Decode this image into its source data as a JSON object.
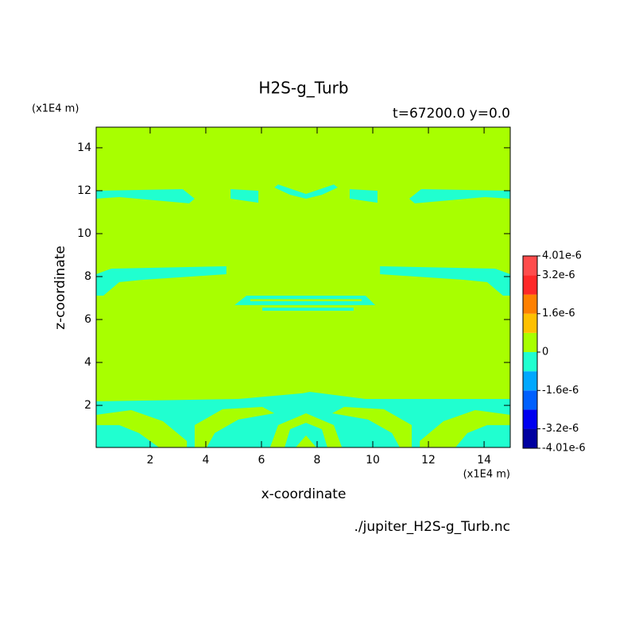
{
  "chart_data": {
    "type": "contour",
    "title": "H2S-g_Turb",
    "subtitle": "t=67200.0 y=0.0",
    "x_label": "x-coordinate",
    "y_label": "z-coordinate",
    "x_unit": "(x1E4 m)",
    "y_unit": "(x1E4 m)",
    "source": "./jupiter_H2S-g_Turb.nc",
    "xlim": [
      0.06,
      14.94
    ],
    "ylim": [
      0.04,
      14.96
    ],
    "xticks": [
      2,
      4,
      6,
      8,
      10,
      12,
      14
    ],
    "yticks": [
      2,
      4,
      6,
      8,
      10,
      12,
      14
    ],
    "background": 4e-07,
    "regions": [
      {
        "value": -4e-07,
        "x": [
          0.06,
          3.17,
          3.6,
          3.4,
          0.89,
          0.06
        ],
        "z": [
          12.0,
          12.07,
          11.63,
          11.41,
          11.7,
          11.63
        ]
      },
      {
        "value": -4e-07,
        "x": [
          14.94,
          11.74,
          11.31,
          11.51,
          14.03,
          14.94
        ],
        "z": [
          12.0,
          12.07,
          11.63,
          11.41,
          11.7,
          11.63
        ]
      },
      {
        "value": -4e-07,
        "x": [
          6.46,
          7.03,
          7.6,
          8.17,
          8.74,
          8.6,
          7.6,
          6.6
        ],
        "z": [
          12.15,
          11.81,
          11.63,
          11.81,
          12.15,
          12.29,
          11.85,
          12.29
        ]
      },
      {
        "value": -4e-07,
        "x": [
          4.89,
          5.89,
          5.89,
          4.89
        ],
        "z": [
          12.07,
          12.0,
          11.44,
          11.63
        ]
      },
      {
        "value": -4e-07,
        "x": [
          9.17,
          10.17,
          10.17,
          9.17
        ],
        "z": [
          12.07,
          12.0,
          11.44,
          11.63
        ]
      },
      {
        "value": -4e-07,
        "x": [
          0.06,
          0.6,
          4.74,
          4.74,
          1.75,
          0.89,
          0.32,
          0.06
        ],
        "z": [
          8.11,
          8.37,
          8.48,
          8.11,
          7.85,
          7.74,
          7.11,
          7.11
        ]
      },
      {
        "value": -4e-07,
        "x": [
          14.94,
          14.4,
          10.26,
          10.26,
          13.26,
          14.11,
          14.68,
          14.94
        ],
        "z": [
          8.11,
          8.37,
          8.48,
          8.11,
          7.85,
          7.74,
          7.11,
          7.11
        ]
      },
      {
        "value": -4e-07,
        "x": [
          5.03,
          5.46,
          9.74,
          10.09
        ],
        "z": [
          6.67,
          7.11,
          7.11,
          6.67
        ]
      },
      {
        "value": 4e-07,
        "x": [
          5.6,
          9.6,
          9.6,
          5.6
        ],
        "z": [
          6.95,
          6.95,
          6.85,
          6.85
        ]
      },
      {
        "value": -4e-07,
        "x": [
          6.03,
          9.31,
          9.31,
          6.03
        ],
        "z": [
          6.55,
          6.55,
          6.41,
          6.41
        ]
      },
      {
        "value": -4e-07,
        "x": [
          0.06,
          5.17,
          7.46,
          7.74,
          9.74,
          14.94,
          14.94,
          0.06
        ],
        "z": [
          2.19,
          2.3,
          2.56,
          2.63,
          2.3,
          2.3,
          0.04,
          0.04
        ]
      },
      {
        "value": 4e-07,
        "x": [
          0.06,
          1.32,
          2.46,
          3.32,
          3.32,
          2.32,
          1.6,
          0.89,
          0.06
        ],
        "z": [
          1.56,
          1.78,
          1.26,
          0.34,
          0.04,
          0.04,
          0.71,
          1.08,
          1.08
        ]
      },
      {
        "value": 4e-07,
        "x": [
          3.6,
          4.6,
          6.03,
          6.46,
          5.17,
          4.32,
          4.03,
          3.6
        ],
        "z": [
          1.08,
          1.82,
          1.93,
          1.63,
          1.34,
          0.71,
          0.04,
          0.04
        ]
      },
      {
        "value": 4e-07,
        "x": [
          11.4,
          10.4,
          8.97,
          8.54,
          9.83,
          10.69,
          10.97,
          11.4
        ],
        "z": [
          1.08,
          1.82,
          1.93,
          1.63,
          1.34,
          0.71,
          0.04,
          0.04
        ]
      },
      {
        "value": 4e-07,
        "x": [
          14.94,
          13.68,
          12.54,
          11.69,
          11.69,
          12.97,
          13.4,
          14.11,
          14.94
        ],
        "z": [
          1.56,
          1.78,
          1.26,
          0.34,
          0.04,
          0.04,
          0.71,
          1.08,
          1.08
        ]
      },
      {
        "value": 4e-07,
        "x": [
          6.31,
          6.6,
          7.6,
          8.6,
          8.89
        ],
        "z": [
          0.04,
          1.08,
          1.63,
          1.08,
          0.04
        ]
      },
      {
        "value": -4e-07,
        "x": [
          6.83,
          7.03,
          7.6,
          8.17,
          8.37
        ],
        "z": [
          0.04,
          0.89,
          1.19,
          0.89,
          0.04
        ]
      },
      {
        "value": 4e-07,
        "x": [
          7.23,
          7.6,
          7.97
        ],
        "z": [
          0.04,
          0.6,
          0.04
        ]
      }
    ],
    "colorbar": {
      "levels": [
        -4.01e-06,
        -3.2e-06,
        -2.4e-06,
        -1.6e-06,
        -8e-07,
        0,
        8e-07,
        1.6e-06,
        2.4e-06,
        3.2e-06,
        4.01e-06
      ],
      "colors": [
        "#0000a0",
        "#0000f0",
        "#0060ff",
        "#00a8ff",
        "#20ffd0",
        "#a8ff00",
        "#ffc000",
        "#ff8000",
        "#ff2828",
        "#ff4c4c"
      ],
      "ticks": [
        {
          "value": 4.01e-06,
          "label": "4.01e-6"
        },
        {
          "value": 3.2e-06,
          "label": "3.2e-6"
        },
        {
          "value": 1.6e-06,
          "label": "1.6e-6"
        },
        0,
        {
          "value": -1.6e-06,
          "label": "-1.6e-6"
        },
        {
          "value": -3.2e-06,
          "label": "-3.2e-6"
        },
        {
          "value": -4.01e-06,
          "label": "-4.01e-6"
        }
      ]
    }
  }
}
